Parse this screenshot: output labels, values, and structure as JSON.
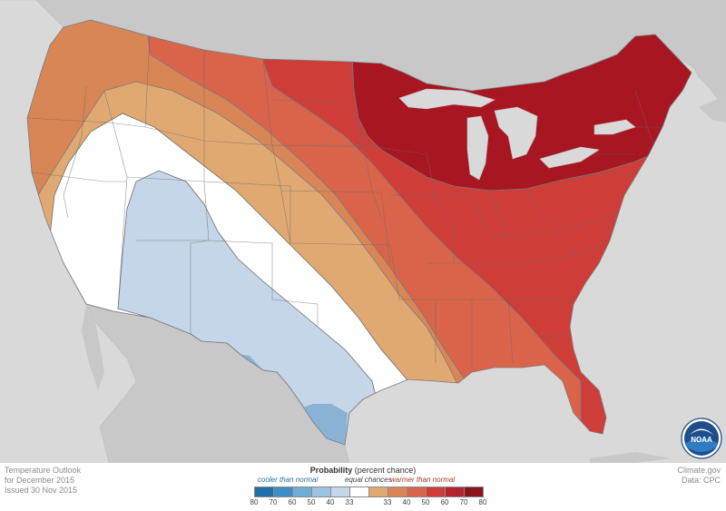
{
  "map": {
    "title_lines": [
      "Temperature Outlook",
      "for December 2015",
      "Issued 30 Nov 2015"
    ],
    "colors": {
      "ocean": "#d9d9d9",
      "land_outside": "#c8c8c8",
      "great_lakes": "#d9d9d9",
      "cool_40": "#c5d6e8",
      "cool_50": "#8ab2d5",
      "equal": "#ffffff",
      "warm_33": "#e0a972",
      "warm_40": "#d98657",
      "warm_50": "#d9644a",
      "warm_60": "#cf3d39",
      "warm_70": "#a81621"
    }
  },
  "legend": {
    "title": "Probability",
    "title_suffix": "(percent chance)",
    "cooler_label": "cooler than normal",
    "equal_label": "equal chances",
    "warmer_label": "warmer than normal",
    "swatch_colors": [
      "#1f6fa8",
      "#3d8fc3",
      "#6fadd6",
      "#9cc4e2",
      "#c5d6e8",
      "#ffffff",
      "#e0a972",
      "#d98657",
      "#d9644a",
      "#cf3d39",
      "#b22530",
      "#8c1319"
    ],
    "tick_labels": [
      "80",
      "70",
      "60",
      "50",
      "40",
      "33",
      "",
      "33",
      "40",
      "50",
      "60",
      "70",
      "80"
    ]
  },
  "credits": {
    "site": "Climate.gov",
    "data": "Data: CPC"
  },
  "logo": {
    "text": "NOAA"
  }
}
